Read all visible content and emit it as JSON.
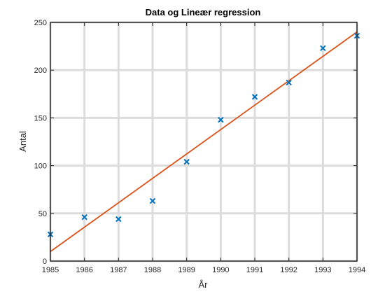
{
  "chart_data": {
    "type": "scatter",
    "title": "Data og Lineær regression",
    "xlabel": "År",
    "ylabel": "Antal",
    "xlim": [
      1985,
      1994
    ],
    "ylim": [
      0,
      250
    ],
    "xticks": [
      1985,
      1986,
      1987,
      1988,
      1989,
      1990,
      1991,
      1992,
      1993,
      1994
    ],
    "yticks": [
      0,
      50,
      100,
      150,
      200,
      250
    ],
    "grid": true,
    "series": [
      {
        "kind": "scatter",
        "marker": "x",
        "color": "#0072BD",
        "x": [
          1985,
          1986,
          1987,
          1988,
          1989,
          1990,
          1991,
          1992,
          1993,
          1994
        ],
        "y": [
          28,
          46,
          44,
          63,
          104,
          148,
          172,
          187,
          223,
          236
        ]
      },
      {
        "kind": "line",
        "color": "#D95319",
        "x": [
          1985,
          1994
        ],
        "y": [
          10,
          240
        ]
      }
    ]
  }
}
